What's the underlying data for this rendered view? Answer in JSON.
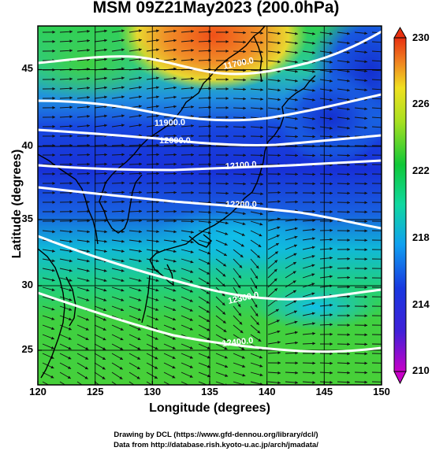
{
  "title": "MSM 09Z21May2023 (200.0hPa)",
  "xlabel": "Longitude (degrees)",
  "ylabel": "Latitude  (degrees)",
  "x_ticks": [
    "120",
    "125",
    "130",
    "135",
    "140",
    "145",
    "150"
  ],
  "y_ticks": [
    "45",
    "40",
    "35",
    "30",
    "25"
  ],
  "colorbar_ticks": [
    "230",
    "226",
    "222",
    "218",
    "214",
    "210"
  ],
  "contour_labels": [
    "11700.0",
    "11900.0",
    "12000.0",
    "12100.0",
    "12200.0",
    "12300.0",
    "12400.0"
  ],
  "credits": {
    "line1": "Drawing by DCL (https://www.gfd-dennou.org/library/dcl/)",
    "line2": "Data from http://database.rish.kyoto-u.ac.jp/arch/jmadata/"
  },
  "map_extent": {
    "lon": [
      120,
      150
    ],
    "lat": [
      22.5,
      47.5
    ]
  },
  "colorbar_range": [
    210,
    230
  ]
}
